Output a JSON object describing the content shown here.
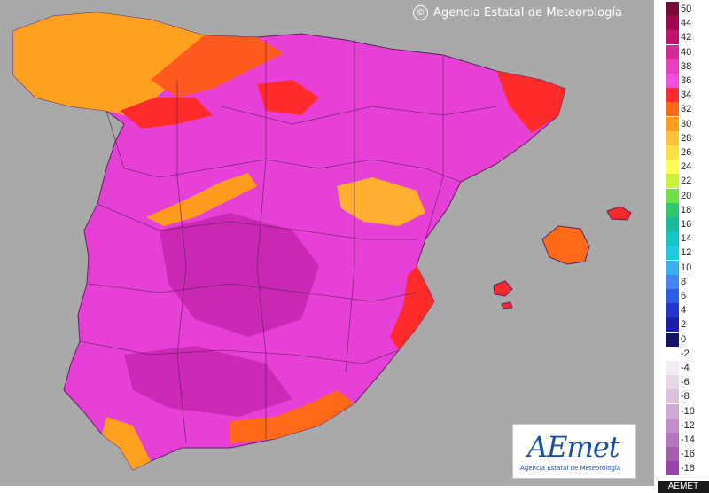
{
  "credit": {
    "symbol": "©",
    "text": "Agencia Estatal de Meteorología"
  },
  "logo": {
    "mark": "AEmet",
    "subtitle": "Agencia Estatal de Meteorología"
  },
  "watermark": "AEMET",
  "legend": {
    "entries": [
      {
        "label": "50",
        "color": "#7a0a3a"
      },
      {
        "label": "44",
        "color": "#a1064f"
      },
      {
        "label": "42",
        "color": "#c0126e"
      },
      {
        "label": "40",
        "color": "#d6289a"
      },
      {
        "label": "38",
        "color": "#e83fc0"
      },
      {
        "label": "36",
        "color": "#f24fe0"
      },
      {
        "label": "34",
        "color": "#ff2a2a"
      },
      {
        "label": "32",
        "color": "#ff6a18"
      },
      {
        "label": "30",
        "color": "#ff9d20"
      },
      {
        "label": "28",
        "color": "#ffc23a"
      },
      {
        "label": "26",
        "color": "#ffe146"
      },
      {
        "label": "24",
        "color": "#ffff55"
      },
      {
        "label": "22",
        "color": "#c9f23a"
      },
      {
        "label": "20",
        "color": "#6ee04a"
      },
      {
        "label": "18",
        "color": "#2fc86a"
      },
      {
        "label": "16",
        "color": "#1ab9a0"
      },
      {
        "label": "14",
        "color": "#17c3c7"
      },
      {
        "label": "12",
        "color": "#22c8e8"
      },
      {
        "label": "10",
        "color": "#3ab0f0"
      },
      {
        "label": "8",
        "color": "#3f86f0"
      },
      {
        "label": "6",
        "color": "#2a5de6"
      },
      {
        "label": "4",
        "color": "#1f36d0"
      },
      {
        "label": "2",
        "color": "#1b1fa8"
      },
      {
        "label": "0",
        "color": "#141466"
      },
      {
        "label": "-2",
        "color": "#ffffff"
      },
      {
        "label": "-4",
        "color": "#f3ecf3"
      },
      {
        "label": "-6",
        "color": "#e8d7e8"
      },
      {
        "label": "-8",
        "color": "#dcc1dd"
      },
      {
        "label": "-10",
        "color": "#d0a8d4"
      },
      {
        "label": "-12",
        "color": "#c48ecb"
      },
      {
        "label": "-14",
        "color": "#b873c0"
      },
      {
        "label": "-16",
        "color": "#a95ab5"
      },
      {
        "label": "-18",
        "color": "#9a44aa"
      }
    ]
  },
  "map": {
    "land_color": "#e640d6",
    "hot_color": "#c021a8",
    "warm_color": "#ff2a2a",
    "mild_color": "#ffa020",
    "sea_color": "#a9a9a9"
  }
}
